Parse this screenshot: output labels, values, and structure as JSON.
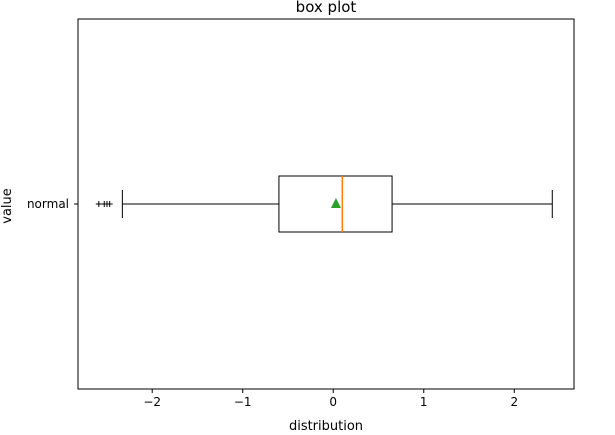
{
  "chart_data": {
    "type": "boxplot",
    "orientation": "horizontal",
    "title": "box plot",
    "xlabel": "distribution",
    "ylabel": "value",
    "xlim": [
      -2.82,
      2.66
    ],
    "xticks": [
      -2,
      -1,
      0,
      1,
      2
    ],
    "xtick_labels": [
      "−2",
      "−1",
      "0",
      "1",
      "2"
    ],
    "categories": [
      "normal"
    ],
    "boxes": [
      {
        "label": "normal",
        "whisker_low": -2.33,
        "q1": -0.6,
        "median": 0.1,
        "mean": 0.03,
        "q3": 0.65,
        "whisker_high": 2.42,
        "fliers": [
          -2.59,
          -2.53,
          -2.5,
          -2.47
        ]
      }
    ],
    "grid": false,
    "colors": {
      "box": "#000000",
      "median": "#ff7f0e",
      "mean": "#2ca02c"
    }
  }
}
